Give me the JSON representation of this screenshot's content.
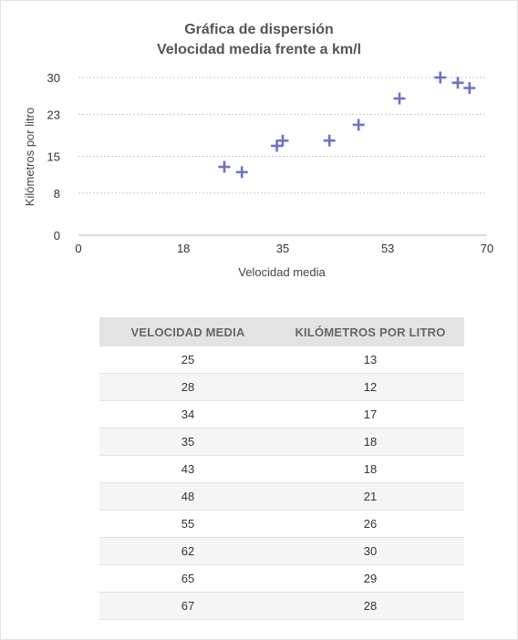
{
  "chart_data": {
    "type": "scatter",
    "title": "Gráfica de dispersión",
    "subtitle": "Velocidad media frente a km/l",
    "xlabel": "Velocidad media",
    "ylabel": "Kilómetros por litro",
    "xlim": [
      0,
      70
    ],
    "ylim": [
      0,
      30
    ],
    "x_ticks": [
      "0",
      "18",
      "35",
      "53",
      "70"
    ],
    "y_ticks": [
      "0",
      "8",
      "15",
      "23",
      "30"
    ],
    "grid": true,
    "marker": "plus",
    "colors": {
      "marker": "#6e72c9"
    },
    "points": [
      {
        "x": 25,
        "y": 13
      },
      {
        "x": 28,
        "y": 12
      },
      {
        "x": 34,
        "y": 17
      },
      {
        "x": 35,
        "y": 18
      },
      {
        "x": 43,
        "y": 18
      },
      {
        "x": 48,
        "y": 21
      },
      {
        "x": 55,
        "y": 26
      },
      {
        "x": 62,
        "y": 30
      },
      {
        "x": 65,
        "y": 29
      },
      {
        "x": 67,
        "y": 28
      }
    ]
  },
  "table": {
    "headers": [
      "VELOCIDAD MEDIA",
      "KILÓMETROS POR LITRO"
    ],
    "rows": [
      [
        "25",
        "13"
      ],
      [
        "28",
        "12"
      ],
      [
        "34",
        "17"
      ],
      [
        "35",
        "18"
      ],
      [
        "43",
        "18"
      ],
      [
        "48",
        "21"
      ],
      [
        "55",
        "26"
      ],
      [
        "62",
        "30"
      ],
      [
        "65",
        "29"
      ],
      [
        "67",
        "28"
      ]
    ]
  }
}
